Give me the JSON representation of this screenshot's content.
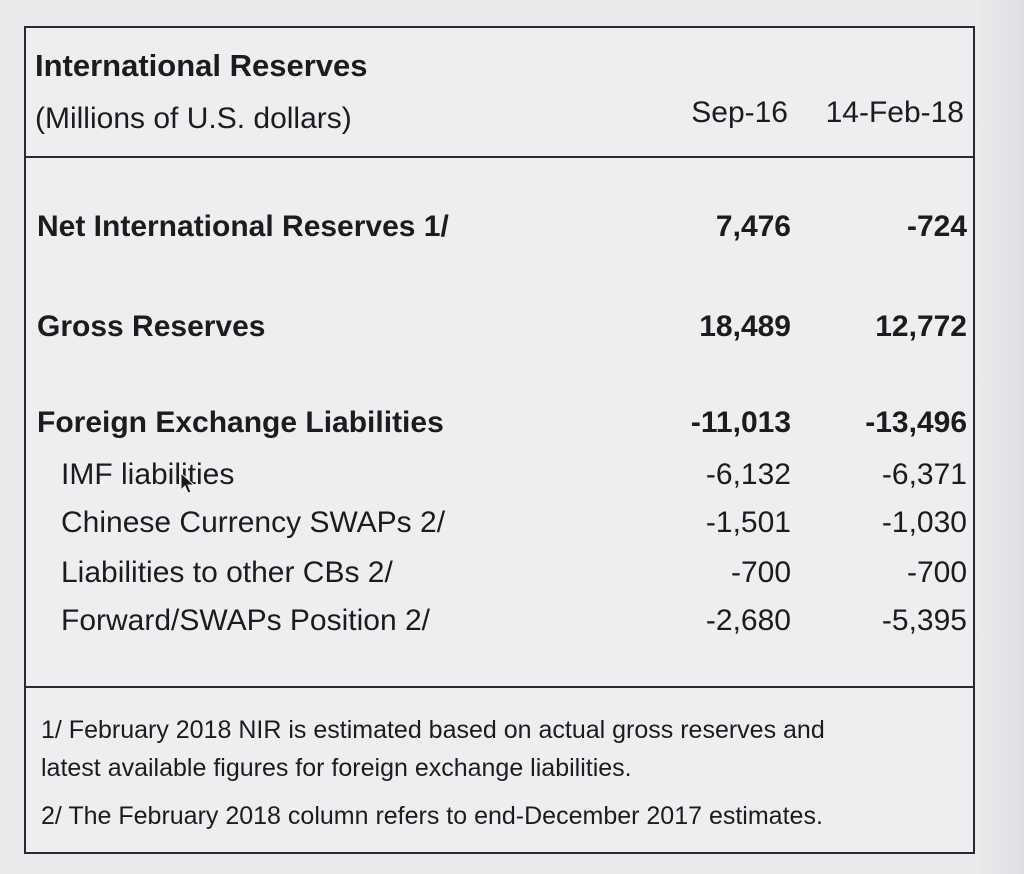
{
  "top_partial_text": "International Reserves",
  "table": {
    "title": "International Reserves",
    "subtitle": "(Millions of U.S. dollars)",
    "columns": [
      "Sep-16",
      "14-Feb-18"
    ],
    "rows": [
      {
        "label": "Net International Reserves 1/",
        "values": [
          "7,476",
          "-724"
        ],
        "bold": true
      },
      {
        "label": "Gross Reserves",
        "values": [
          "18,489",
          "12,772"
        ],
        "bold": true
      },
      {
        "label": "Foreign Exchange Liabilities",
        "values": [
          "-11,013",
          "-13,496"
        ],
        "bold": true
      },
      {
        "label": "IMF liabilities",
        "values": [
          "-6,132",
          "-6,371"
        ],
        "bold": false
      },
      {
        "label": "Chinese Currency SWAPs 2/",
        "values": [
          "-1,501",
          "-1,030"
        ],
        "bold": false
      },
      {
        "label": "Liabilities to other CBs 2/",
        "values": [
          "-700",
          "-700"
        ],
        "bold": false
      },
      {
        "label": "Forward/SWAPs Position 2/",
        "values": [
          "-2,680",
          "-5,395"
        ],
        "bold": false
      }
    ],
    "notes": [
      "1/ February 2018 NIR is estimated based on actual gross reserves and",
      "latest available figures for foreign exchange liabilities.",
      "2/ The February 2018 column refers to end-December 2017 estimates."
    ]
  }
}
